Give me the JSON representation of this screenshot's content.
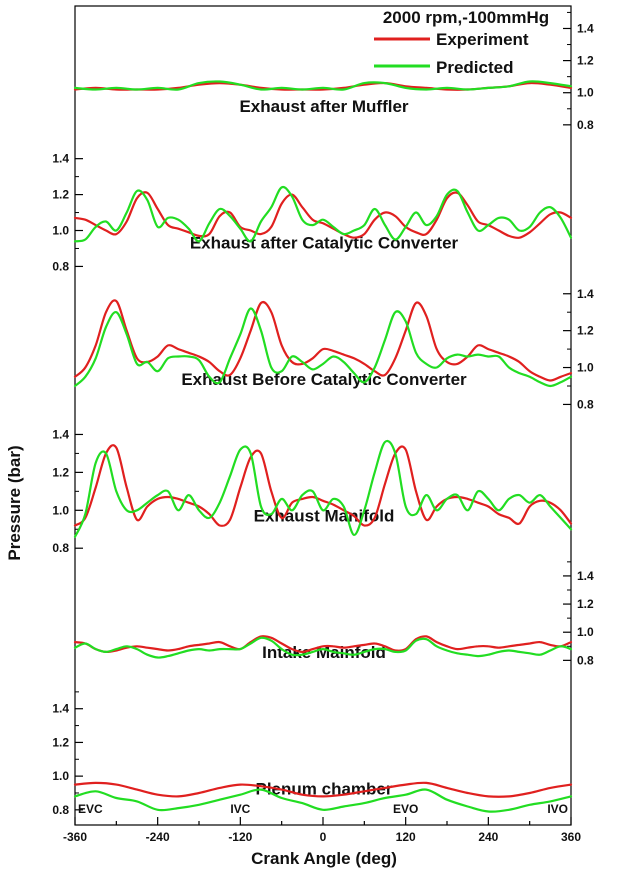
{
  "chart_data": {
    "type": "line",
    "condition": "2000 rpm,-100mmHg",
    "xlabel": "Crank Angle (deg)",
    "ylabel": "Pressure (bar)",
    "xlim": [
      -360,
      360
    ],
    "xticks": [
      -360,
      -240,
      -120,
      0,
      120,
      240,
      360
    ],
    "valve_events": [
      {
        "label": "EVC",
        "x": -360
      },
      {
        "label": "IVC",
        "x": -120
      },
      {
        "label": "EVO",
        "x": 120
      },
      {
        "label": "IVO",
        "x": 360
      }
    ],
    "legend": {
      "placement": "top-right",
      "entries": [
        {
          "name": "Experiment",
          "color": "#e0201f"
        },
        {
          "name": "Predicted",
          "color": "#22dd22"
        }
      ]
    },
    "panels": [
      {
        "title": "Exhaust after Muffler",
        "axis_side": "right",
        "ylim": [
          0.69,
          1.54
        ],
        "yticks": [
          0.8,
          1.0,
          1.2,
          1.4
        ],
        "x": [
          -360,
          -330,
          -300,
          -270,
          -240,
          -210,
          -180,
          -150,
          -120,
          -90,
          -60,
          -30,
          0,
          30,
          60,
          90,
          120,
          150,
          180,
          210,
          240,
          270,
          300,
          330,
          360
        ],
        "series": [
          {
            "name": "Experiment",
            "values": [
              1.02,
              1.03,
              1.02,
              1.02,
              1.02,
              1.03,
              1.05,
              1.06,
              1.05,
              1.03,
              1.02,
              1.02,
              1.02,
              1.03,
              1.05,
              1.06,
              1.04,
              1.03,
              1.02,
              1.02,
              1.03,
              1.04,
              1.06,
              1.05,
              1.03
            ]
          },
          {
            "name": "Predicted",
            "values": [
              1.03,
              1.02,
              1.03,
              1.02,
              1.03,
              1.02,
              1.06,
              1.07,
              1.05,
              1.02,
              1.03,
              1.02,
              1.03,
              1.02,
              1.06,
              1.06,
              1.03,
              1.02,
              1.03,
              1.02,
              1.03,
              1.04,
              1.07,
              1.06,
              1.04
            ]
          }
        ]
      },
      {
        "title": "Exhaust after Catalytic Converter",
        "axis_side": "left",
        "ylim": [
          0.73,
          1.49
        ],
        "yticks": [
          0.8,
          1.0,
          1.2,
          1.4
        ],
        "x": [
          -360,
          -345,
          -330,
          -315,
          -300,
          -285,
          -270,
          -255,
          -240,
          -225,
          -210,
          -195,
          -180,
          -165,
          -150,
          -135,
          -120,
          -105,
          -90,
          -75,
          -60,
          -45,
          -30,
          -15,
          0,
          15,
          30,
          45,
          60,
          75,
          90,
          105,
          120,
          135,
          150,
          165,
          180,
          195,
          210,
          225,
          240,
          255,
          270,
          285,
          300,
          315,
          330,
          345,
          360
        ],
        "series": [
          {
            "name": "Experiment",
            "values": [
              1.07,
              1.06,
              1.03,
              1.0,
              0.98,
              1.05,
              1.18,
              1.21,
              1.12,
              1.03,
              1.01,
              0.99,
              0.97,
              0.98,
              1.08,
              1.1,
              1.02,
              1.0,
              0.98,
              1.02,
              1.15,
              1.2,
              1.13,
              1.06,
              1.04,
              1.01,
              0.98,
              0.96,
              0.98,
              1.06,
              1.1,
              1.08,
              1.02,
              0.99,
              0.98,
              1.06,
              1.18,
              1.21,
              1.14,
              1.05,
              1.03,
              1.0,
              0.97,
              0.96,
              0.99,
              1.04,
              1.09,
              1.1,
              1.07
            ]
          },
          {
            "name": "Predicted",
            "values": [
              0.94,
              0.95,
              1.02,
              1.05,
              1.0,
              1.1,
              1.22,
              1.17,
              1.02,
              1.07,
              1.06,
              1.01,
              0.94,
              1.04,
              1.12,
              1.08,
              1.01,
              0.94,
              1.05,
              1.13,
              1.24,
              1.19,
              1.06,
              1.03,
              1.06,
              1.02,
              0.98,
              1.0,
              1.03,
              1.12,
              1.03,
              0.95,
              1.02,
              1.1,
              1.03,
              1.08,
              1.2,
              1.22,
              1.1,
              1.0,
              1.03,
              1.07,
              1.06,
              1.0,
              1.02,
              1.1,
              1.13,
              1.07,
              0.96
            ]
          }
        ]
      },
      {
        "title": "Exhaust Before Catalytic Converter",
        "axis_side": "right",
        "ylim": [
          0.74,
          1.48
        ],
        "yticks": [
          0.8,
          1.0,
          1.2,
          1.4
        ],
        "x": [
          -360,
          -345,
          -330,
          -315,
          -300,
          -285,
          -270,
          -255,
          -240,
          -225,
          -210,
          -195,
          -180,
          -165,
          -150,
          -135,
          -120,
          -105,
          -90,
          -75,
          -60,
          -45,
          -30,
          -15,
          0,
          15,
          30,
          45,
          60,
          75,
          90,
          105,
          120,
          135,
          150,
          165,
          180,
          195,
          210,
          225,
          240,
          255,
          270,
          285,
          300,
          315,
          330,
          345,
          360
        ],
        "series": [
          {
            "name": "Experiment",
            "values": [
              0.95,
              1.0,
              1.12,
              1.3,
              1.36,
              1.2,
              1.05,
              1.03,
              1.06,
              1.12,
              1.1,
              1.08,
              1.06,
              1.03,
              0.98,
              0.96,
              1.05,
              1.2,
              1.35,
              1.3,
              1.12,
              1.03,
              1.02,
              1.05,
              1.1,
              1.09,
              1.07,
              1.05,
              1.02,
              0.98,
              0.96,
              1.05,
              1.2,
              1.35,
              1.28,
              1.1,
              1.03,
              1.02,
              1.06,
              1.12,
              1.1,
              1.08,
              1.06,
              1.03,
              0.98,
              0.95,
              0.93,
              0.95,
              0.97
            ]
          },
          {
            "name": "Predicted",
            "values": [
              0.9,
              0.95,
              1.05,
              1.22,
              1.3,
              1.18,
              1.02,
              1.03,
              0.98,
              1.05,
              1.06,
              1.06,
              1.04,
              0.95,
              0.92,
              1.05,
              1.18,
              1.32,
              1.2,
              1.0,
              0.98,
              1.06,
              1.03,
              0.99,
              1.02,
              1.06,
              1.03,
              0.97,
              0.92,
              1.0,
              1.15,
              1.3,
              1.25,
              1.08,
              1.02,
              1.0,
              1.05,
              1.07,
              1.06,
              1.07,
              1.06,
              1.06,
              1.0,
              0.97,
              0.95,
              0.92,
              0.9,
              0.92,
              0.95
            ]
          }
        ]
      },
      {
        "title": "Exhaust Manifold",
        "axis_side": "left",
        "ylim": [
          0.78,
          1.5
        ],
        "yticks": [
          0.8,
          1.0,
          1.2,
          1.4
        ],
        "x": [
          -360,
          -345,
          -330,
          -315,
          -300,
          -285,
          -270,
          -255,
          -240,
          -225,
          -210,
          -195,
          -180,
          -165,
          -150,
          -135,
          -120,
          -105,
          -90,
          -75,
          -60,
          -45,
          -30,
          -15,
          0,
          15,
          30,
          45,
          60,
          75,
          90,
          105,
          120,
          135,
          150,
          165,
          180,
          195,
          210,
          225,
          240,
          255,
          270,
          285,
          300,
          315,
          330,
          345,
          360
        ],
        "series": [
          {
            "name": "Experiment",
            "values": [
              0.92,
              0.96,
              1.12,
              1.3,
              1.33,
              1.12,
              0.95,
              1.02,
              1.06,
              1.07,
              1.06,
              1.04,
              1.02,
              0.98,
              0.92,
              0.95,
              1.12,
              1.28,
              1.3,
              1.1,
              0.96,
              1.04,
              1.06,
              1.07,
              1.05,
              1.03,
              1.0,
              0.97,
              0.92,
              0.96,
              1.14,
              1.3,
              1.32,
              1.1,
              0.95,
              1.02,
              1.06,
              1.07,
              1.06,
              1.04,
              1.02,
              0.98,
              0.96,
              0.93,
              1.02,
              1.05,
              1.04,
              1.0,
              0.93
            ]
          },
          {
            "name": "Predicted",
            "values": [
              0.86,
              0.98,
              1.25,
              1.3,
              1.1,
              1.0,
              1.0,
              1.04,
              1.08,
              1.1,
              1.0,
              1.08,
              1.0,
              0.96,
              1.04,
              1.18,
              1.32,
              1.3,
              1.02,
              0.98,
              1.06,
              1.0,
              1.08,
              1.1,
              1.0,
              1.06,
              1.02,
              0.87,
              1.0,
              1.2,
              1.36,
              1.3,
              1.02,
              0.98,
              1.08,
              1.0,
              1.06,
              1.08,
              1.0,
              1.1,
              1.06,
              1.0,
              1.06,
              1.08,
              1.04,
              1.08,
              1.02,
              0.96,
              0.9
            ]
          }
        ]
      },
      {
        "title": "Intake Mainfold",
        "axis_side": "right",
        "ylim": [
          0.6,
          1.57
        ],
        "yticks": [
          0.8,
          1.0,
          1.2,
          1.4
        ],
        "x": [
          -360,
          -345,
          -330,
          -315,
          -300,
          -285,
          -270,
          -255,
          -240,
          -225,
          -210,
          -195,
          -180,
          -165,
          -150,
          -135,
          -120,
          -105,
          -90,
          -75,
          -60,
          -45,
          -30,
          -15,
          0,
          15,
          30,
          45,
          60,
          75,
          90,
          105,
          120,
          135,
          150,
          165,
          180,
          195,
          210,
          225,
          240,
          255,
          270,
          285,
          300,
          315,
          330,
          345,
          360
        ],
        "series": [
          {
            "name": "Experiment",
            "values": [
              0.93,
              0.92,
              0.88,
              0.86,
              0.87,
              0.89,
              0.9,
              0.89,
              0.88,
              0.87,
              0.88,
              0.9,
              0.91,
              0.92,
              0.93,
              0.9,
              0.88,
              0.93,
              0.97,
              0.96,
              0.92,
              0.88,
              0.86,
              0.88,
              0.9,
              0.9,
              0.89,
              0.9,
              0.91,
              0.92,
              0.9,
              0.87,
              0.88,
              0.95,
              0.97,
              0.93,
              0.9,
              0.88,
              0.89,
              0.9,
              0.9,
              0.89,
              0.9,
              0.91,
              0.92,
              0.93,
              0.91,
              0.9,
              0.93
            ]
          },
          {
            "name": "Predicted",
            "values": [
              0.89,
              0.92,
              0.88,
              0.86,
              0.88,
              0.9,
              0.88,
              0.84,
              0.82,
              0.83,
              0.85,
              0.87,
              0.88,
              0.87,
              0.88,
              0.88,
              0.88,
              0.92,
              0.96,
              0.94,
              0.88,
              0.84,
              0.84,
              0.86,
              0.88,
              0.86,
              0.85,
              0.84,
              0.86,
              0.88,
              0.88,
              0.86,
              0.87,
              0.94,
              0.95,
              0.9,
              0.87,
              0.85,
              0.84,
              0.83,
              0.84,
              0.86,
              0.87,
              0.86,
              0.85,
              0.84,
              0.87,
              0.9,
              0.88
            ]
          }
        ]
      },
      {
        "title": "Plenum chamber",
        "axis_side": "left",
        "ylim": [
          0.71,
          1.52
        ],
        "yticks": [
          0.8,
          1.0,
          1.2,
          1.4
        ],
        "x": [
          -360,
          -330,
          -300,
          -270,
          -240,
          -210,
          -180,
          -150,
          -120,
          -90,
          -60,
          -30,
          0,
          30,
          60,
          90,
          120,
          150,
          180,
          210,
          240,
          270,
          300,
          330,
          360
        ],
        "series": [
          {
            "name": "Experiment",
            "values": [
              0.95,
              0.96,
              0.95,
              0.92,
              0.89,
              0.88,
              0.9,
              0.93,
              0.95,
              0.94,
              0.92,
              0.89,
              0.88,
              0.89,
              0.91,
              0.93,
              0.95,
              0.96,
              0.93,
              0.9,
              0.88,
              0.88,
              0.9,
              0.93,
              0.95
            ]
          },
          {
            "name": "Predicted",
            "values": [
              0.88,
              0.91,
              0.87,
              0.85,
              0.8,
              0.81,
              0.83,
              0.86,
              0.89,
              0.92,
              0.87,
              0.84,
              0.8,
              0.82,
              0.84,
              0.87,
              0.89,
              0.92,
              0.86,
              0.82,
              0.79,
              0.8,
              0.83,
              0.85,
              0.88
            ]
          }
        ]
      }
    ]
  }
}
